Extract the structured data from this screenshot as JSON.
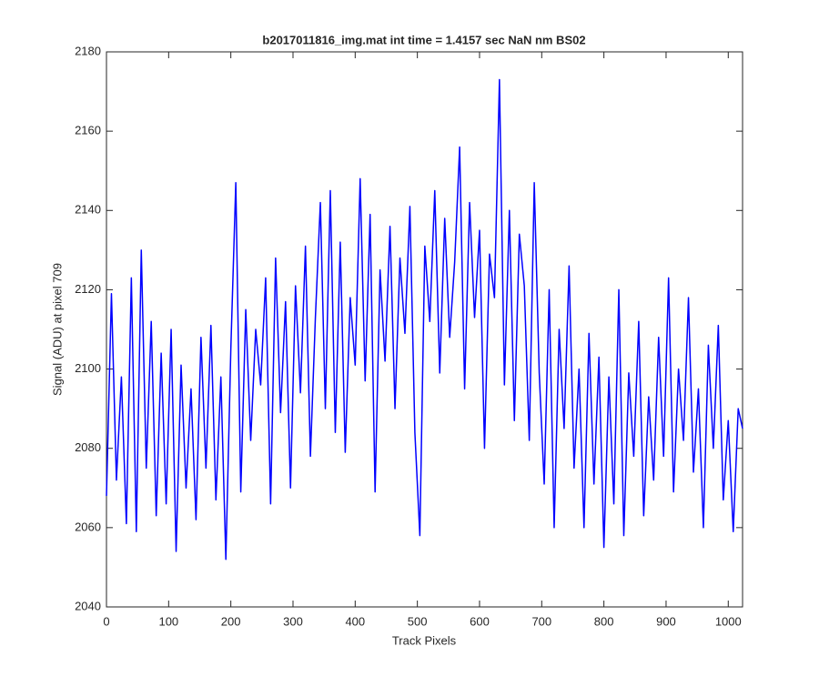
{
  "chart_data": {
    "type": "line",
    "title": "b2017011816_img.mat int time = 1.4157 sec  NaN nm BS02",
    "x_label": "Track Pixels",
    "y_label": "Signal (ADU) at pixel 709",
    "xlim": [
      0,
      1023
    ],
    "ylim": [
      2040,
      2180
    ],
    "xticks": [
      0,
      100,
      200,
      300,
      400,
      500,
      600,
      700,
      800,
      900,
      1000
    ],
    "yticks": [
      2040,
      2060,
      2080,
      2100,
      2120,
      2140,
      2160,
      2180
    ],
    "grid": false,
    "series": [
      {
        "color": "#0000ff",
        "x": [
          0,
          8,
          16,
          24,
          32,
          40,
          48,
          56,
          64,
          72,
          80,
          88,
          96,
          104,
          112,
          120,
          128,
          136,
          144,
          152,
          160,
          168,
          176,
          184,
          192,
          200,
          208,
          216,
          224,
          232,
          240,
          248,
          256,
          264,
          272,
          280,
          288,
          296,
          304,
          312,
          320,
          328,
          336,
          344,
          352,
          360,
          368,
          376,
          384,
          392,
          400,
          408,
          416,
          424,
          432,
          440,
          448,
          456,
          464,
          472,
          480,
          488,
          496,
          504,
          512,
          520,
          528,
          536,
          544,
          552,
          560,
          568,
          576,
          584,
          592,
          600,
          608,
          616,
          624,
          632,
          640,
          648,
          656,
          664,
          672,
          680,
          688,
          696,
          704,
          712,
          720,
          728,
          736,
          744,
          752,
          760,
          768,
          776,
          784,
          792,
          800,
          808,
          816,
          824,
          832,
          840,
          848,
          856,
          864,
          872,
          880,
          888,
          896,
          904,
          912,
          920,
          928,
          936,
          944,
          952,
          960,
          968,
          976,
          984,
          992,
          1000,
          1008,
          1016,
          1023
        ],
        "values": [
          2068,
          2119,
          2072,
          2098,
          2061,
          2123,
          2059,
          2130,
          2075,
          2112,
          2063,
          2104,
          2066,
          2110,
          2054,
          2101,
          2070,
          2095,
          2062,
          2108,
          2075,
          2111,
          2067,
          2098,
          2052,
          2105,
          2147,
          2069,
          2115,
          2082,
          2110,
          2096,
          2123,
          2066,
          2128,
          2089,
          2117,
          2070,
          2121,
          2094,
          2131,
          2078,
          2113,
          2142,
          2090,
          2145,
          2084,
          2132,
          2079,
          2118,
          2101,
          2148,
          2097,
          2139,
          2069,
          2125,
          2102,
          2136,
          2090,
          2128,
          2109,
          2141,
          2084,
          2058,
          2131,
          2112,
          2145,
          2099,
          2138,
          2108,
          2127,
          2156,
          2095,
          2142,
          2113,
          2135,
          2080,
          2129,
          2118,
          2173,
          2096,
          2140,
          2087,
          2134,
          2121,
          2082,
          2147,
          2099,
          2071,
          2120,
          2060,
          2110,
          2085,
          2126,
          2075,
          2100,
          2060,
          2109,
          2071,
          2103,
          2055,
          2098,
          2066,
          2120,
          2058,
          2099,
          2078,
          2112,
          2063,
          2093,
          2072,
          2108,
          2078,
          2123,
          2069,
          2100,
          2082,
          2118,
          2074,
          2095,
          2060,
          2106,
          2080,
          2111,
          2067,
          2087,
          2059,
          2090,
          2085
        ]
      }
    ]
  }
}
